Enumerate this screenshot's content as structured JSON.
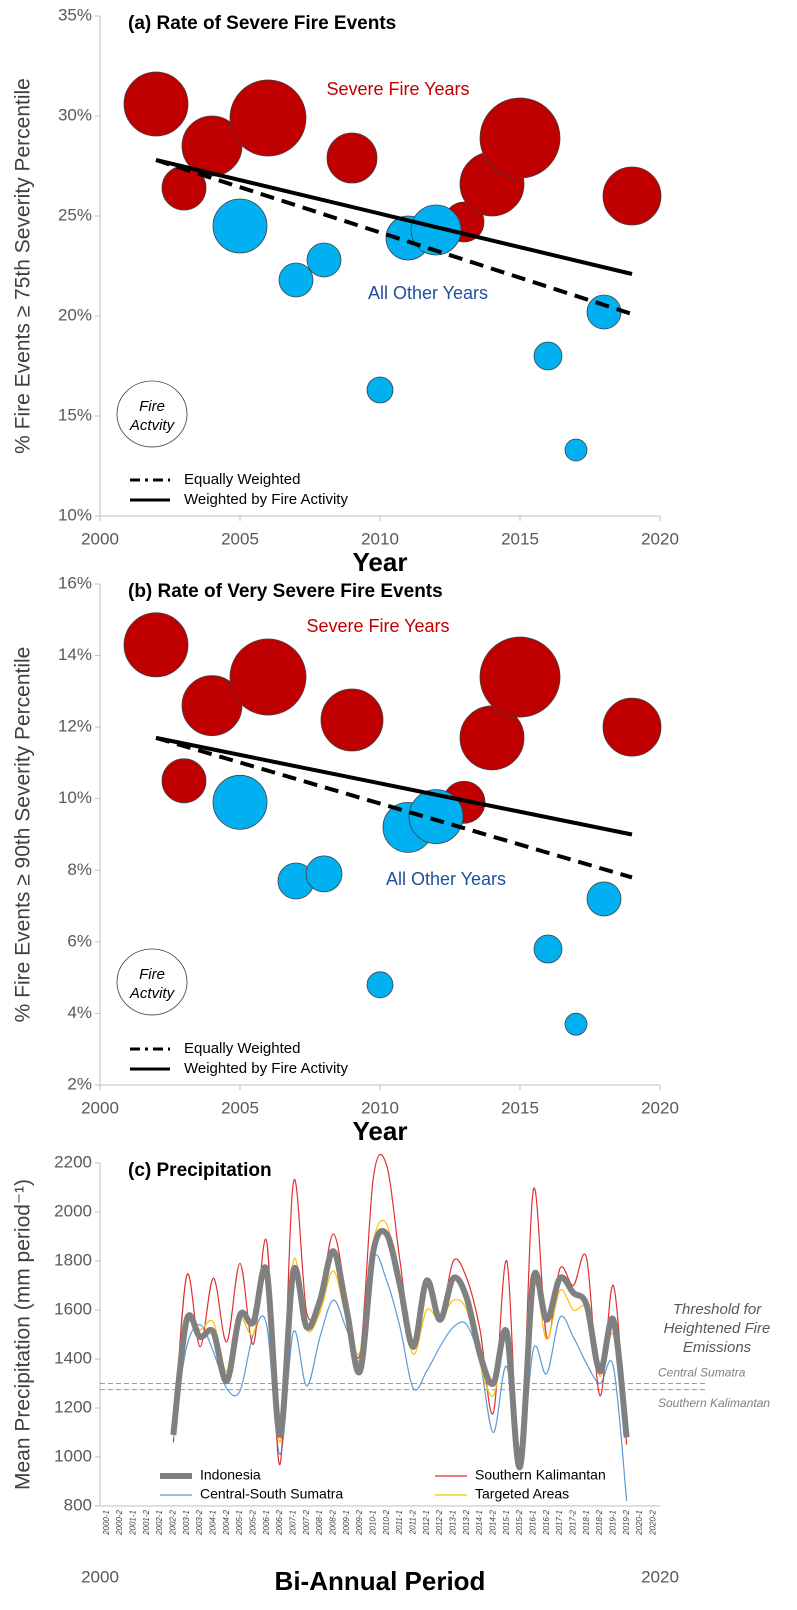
{
  "chart_data": [
    {
      "type": "bubble",
      "title": "(a) Rate of Severe Fire Events",
      "xlabel": "Year",
      "ylabel": "% Fire Events ≥ 75th Severity Percentile",
      "xlim": [
        2000,
        2020
      ],
      "xticks": [
        2000,
        2005,
        2010,
        2015,
        2020
      ],
      "ylim": [
        10,
        35
      ],
      "yticks": [
        {
          "value": 10,
          "label": "10%"
        },
        {
          "value": 15,
          "label": "15%"
        },
        {
          "value": 20,
          "label": "20%"
        },
        {
          "value": 25,
          "label": "25%"
        },
        {
          "value": 30,
          "label": "30%"
        },
        {
          "value": 35,
          "label": "35%"
        }
      ],
      "series": [
        {
          "name": "Severe Fire Years",
          "color": "#c00000",
          "x": [
            2002,
            2003,
            2004,
            2006,
            2009,
            2013,
            2014,
            2015,
            2019
          ],
          "values": [
            30.6,
            26.4,
            28.5,
            29.9,
            27.9,
            24.7,
            26.6,
            28.9,
            26.0
          ],
          "sizes": [
            32,
            22,
            30,
            38,
            25,
            20,
            32,
            40,
            29
          ]
        },
        {
          "name": "All Other Years",
          "color": "#00b0f0",
          "x": [
            2005,
            2007,
            2008,
            2010,
            2011,
            2012,
            2016,
            2017,
            2018
          ],
          "values": [
            24.5,
            21.8,
            22.8,
            16.3,
            23.9,
            24.3,
            18.0,
            13.3,
            20.2
          ],
          "sizes": [
            27,
            17,
            17,
            13,
            22,
            25,
            14,
            11,
            17
          ]
        }
      ],
      "trend_lines": [
        {
          "name": "Equally Weighted",
          "style": "dashed",
          "color": "#000000",
          "x": [
            2002,
            2019
          ],
          "values": [
            27.8,
            20.1
          ]
        },
        {
          "name": "Weighted by Fire Activity",
          "style": "solid",
          "color": "#000000",
          "x": [
            2002,
            2019
          ],
          "values": [
            27.8,
            22.1
          ]
        }
      ],
      "size_label": "Fire Actvity"
    },
    {
      "type": "bubble",
      "title": "(b) Rate of Very Severe Fire Events",
      "xlabel": "Year",
      "ylabel": "% Fire Events ≥ 90th Severity Percentile",
      "xlim": [
        2000,
        2020
      ],
      "xticks": [
        2000,
        2005,
        2010,
        2015,
        2020
      ],
      "ylim": [
        2,
        16
      ],
      "yticks": [
        {
          "value": 2,
          "label": "2%"
        },
        {
          "value": 4,
          "label": "4%"
        },
        {
          "value": 6,
          "label": "6%"
        },
        {
          "value": 8,
          "label": "8%"
        },
        {
          "value": 10,
          "label": "10%"
        },
        {
          "value": 12,
          "label": "12%"
        },
        {
          "value": 14,
          "label": "14%"
        },
        {
          "value": 16,
          "label": "16%"
        }
      ],
      "series": [
        {
          "name": "Severe Fire Years",
          "color": "#c00000",
          "x": [
            2002,
            2003,
            2004,
            2006,
            2009,
            2013,
            2014,
            2015,
            2019
          ],
          "values": [
            14.3,
            10.5,
            12.6,
            13.4,
            12.2,
            9.9,
            11.7,
            13.4,
            12.0
          ],
          "sizes": [
            32,
            22,
            30,
            38,
            31,
            21,
            32,
            40,
            29
          ]
        },
        {
          "name": "All Other Years",
          "color": "#00b0f0",
          "x": [
            2005,
            2007,
            2008,
            2010,
            2011,
            2012,
            2016,
            2017,
            2018
          ],
          "values": [
            9.9,
            7.7,
            7.9,
            4.8,
            9.2,
            9.5,
            5.8,
            3.7,
            7.2
          ],
          "sizes": [
            27,
            18,
            18,
            13,
            25,
            27,
            14,
            11,
            17
          ]
        }
      ],
      "trend_lines": [
        {
          "name": "Equally Weighted",
          "style": "dashed",
          "color": "#000000",
          "x": [
            2002,
            2019
          ],
          "values": [
            11.7,
            7.8
          ]
        },
        {
          "name": "Weighted by Fire Activity",
          "style": "solid",
          "color": "#000000",
          "x": [
            2002,
            2019
          ],
          "values": [
            11.7,
            9.0
          ]
        }
      ],
      "size_label": "Fire Actvity"
    },
    {
      "type": "line",
      "title": "(c) Precipitation",
      "xlabel": "Bi-Annual Period",
      "ylabel": "Mean Precipitation (mm period⁻¹)",
      "x_end_labels": [
        "2000",
        "2020"
      ],
      "categories": [
        "2000-1",
        "2000-2",
        "2001-1",
        "2001-2",
        "2002-1",
        "2002-2",
        "2003-1",
        "2003-2",
        "2004-1",
        "2004-2",
        "2005-1",
        "2005-2",
        "2006-1",
        "2006-2",
        "2007-1",
        "2007-2",
        "2008-1",
        "2008-2",
        "2009-1",
        "2009-2",
        "2010-1",
        "2010-2",
        "2011-1",
        "2011-2",
        "2012-1",
        "2012-2",
        "2013-1",
        "2013-2",
        "2014-1",
        "2014-2",
        "2015-1",
        "2015-2",
        "2016-1",
        "2016-2",
        "2017-1",
        "2017-2",
        "2018-1",
        "2018-2",
        "2019-1",
        "2019-2",
        "2020-1",
        "2020-2"
      ],
      "ylim": [
        800,
        2200
      ],
      "yticks": [
        800,
        1000,
        1200,
        1400,
        1600,
        1800,
        2000,
        2200
      ],
      "series": [
        {
          "name": "Central-South Sumatra",
          "color": "#5b9bd5",
          "width": 1.2,
          "values": [
            null,
            null,
            null,
            null,
            null,
            1100,
            1450,
            1540,
            1430,
            1280,
            1270,
            1500,
            1540,
            1010,
            1510,
            1290,
            1490,
            1640,
            1520,
            1400,
            1810,
            1720,
            1530,
            1280,
            1350,
            1450,
            1530,
            1540,
            1390,
            1100,
            1370,
            950,
            1440,
            1340,
            1570,
            1490,
            1380,
            1300,
            1370,
            820,
            null,
            null
          ]
        },
        {
          "name": "Southern Kalimantan",
          "color": "#e03030",
          "width": 1.2,
          "values": [
            null,
            null,
            null,
            null,
            null,
            1060,
            1740,
            1450,
            1730,
            1470,
            1790,
            1460,
            1880,
            970,
            2120,
            1590,
            1650,
            1910,
            1650,
            1420,
            2140,
            2190,
            1800,
            1440,
            1700,
            1560,
            1800,
            1730,
            1520,
            1180,
            1800,
            960,
            2090,
            1490,
            1770,
            1700,
            1810,
            1250,
            1700,
            1050,
            null,
            null
          ]
        },
        {
          "name": "Targeted Areas",
          "color": "#ffc000",
          "width": 1.2,
          "values": [
            null,
            null,
            null,
            null,
            null,
            1080,
            1560,
            1520,
            1550,
            1350,
            1560,
            1500,
            1720,
            1060,
            1800,
            1520,
            1590,
            1760,
            1560,
            1430,
            1880,
            1950,
            1680,
            1420,
            1600,
            1560,
            1640,
            1600,
            1380,
            1250,
            1480,
            980,
            1700,
            1480,
            1680,
            1600,
            1600,
            1330,
            1500,
            1090,
            null,
            null
          ]
        },
        {
          "name": "Indonesia",
          "color": "#808080",
          "width": 6,
          "values": [
            null,
            null,
            null,
            null,
            null,
            1090,
            1560,
            1490,
            1510,
            1310,
            1580,
            1550,
            1760,
            1090,
            1760,
            1530,
            1640,
            1840,
            1600,
            1350,
            1840,
            1910,
            1700,
            1450,
            1720,
            1560,
            1730,
            1650,
            1420,
            1300,
            1510,
            960,
            1730,
            1560,
            1730,
            1670,
            1620,
            1350,
            1560,
            1080,
            null,
            null
          ]
        }
      ],
      "threshold_title": "Threshold for Heightened Fire Emissions",
      "thresholds": [
        {
          "name": "Central Sumatra",
          "value": 1300
        },
        {
          "name": "Southern Kalimantan",
          "value": 1275
        }
      ]
    }
  ]
}
